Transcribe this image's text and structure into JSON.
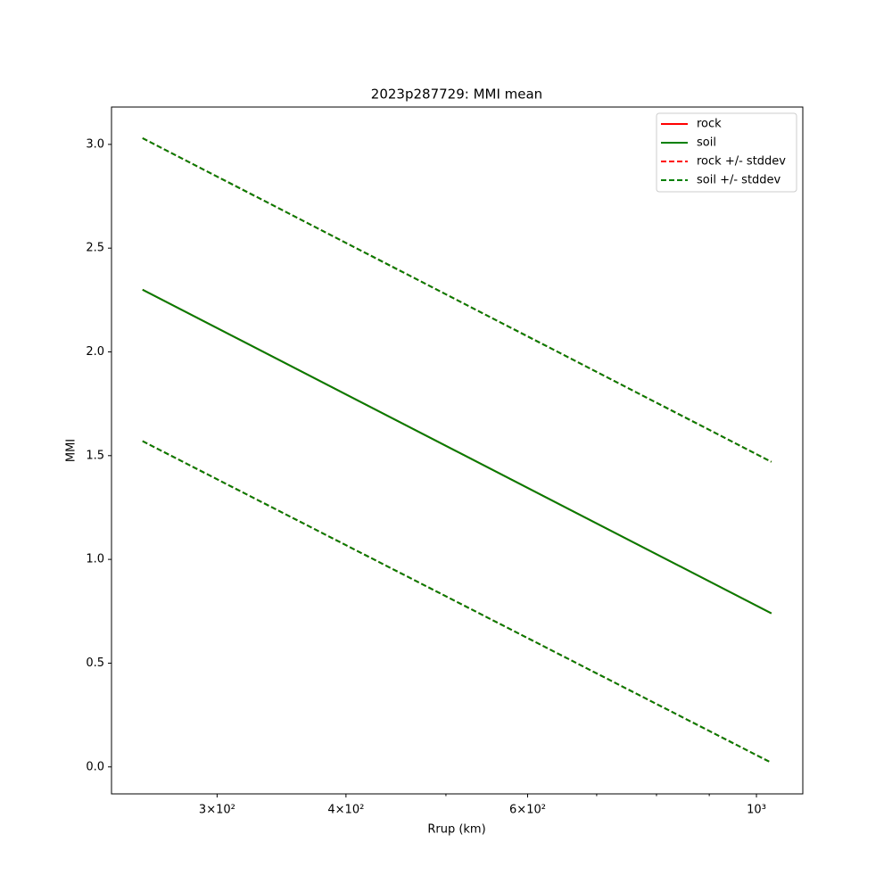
{
  "chart_data": {
    "type": "line",
    "title": "2023p287729: MMI mean",
    "x_label": "Rrup (km)",
    "y_label": "MMI",
    "x_scale": "log",
    "x": [
      254,
      1034
    ],
    "series": [
      {
        "name": "rock",
        "color": "#ff0000",
        "dash": false,
        "values": [
          2.3,
          0.74
        ]
      },
      {
        "name": "soil",
        "color": "#008000",
        "dash": false,
        "values": [
          2.3,
          0.74
        ]
      },
      {
        "name": "rock +/- stddev",
        "color": "#ff0000",
        "dash": true,
        "upper": [
          3.03,
          1.47
        ],
        "lower": [
          1.57,
          0.02
        ]
      },
      {
        "name": "soil +/- stddev",
        "color": "#008000",
        "dash": true,
        "upper": [
          3.03,
          1.47
        ],
        "lower": [
          1.57,
          0.02
        ]
      }
    ],
    "xlim": [
      237,
      1109
    ],
    "ylim": [
      -0.13,
      3.18
    ],
    "xticks": [
      {
        "value": 300,
        "label": "3×10²"
      },
      {
        "value": 400,
        "label": "4×10²"
      },
      {
        "value": 600,
        "label": "6×10²"
      },
      {
        "value": 1000,
        "label": "10³"
      }
    ],
    "xticks_minor": [
      500,
      700,
      800,
      900
    ],
    "yticks": [
      {
        "value": 0,
        "label": "0.0"
      },
      0.5,
      {
        "value": 1,
        "label": "1.0"
      },
      1.5,
      {
        "value": 2,
        "label": "2.0"
      },
      2.5,
      {
        "value": 3,
        "label": "3.0"
      }
    ],
    "grid": false,
    "legend": "upper right"
  }
}
